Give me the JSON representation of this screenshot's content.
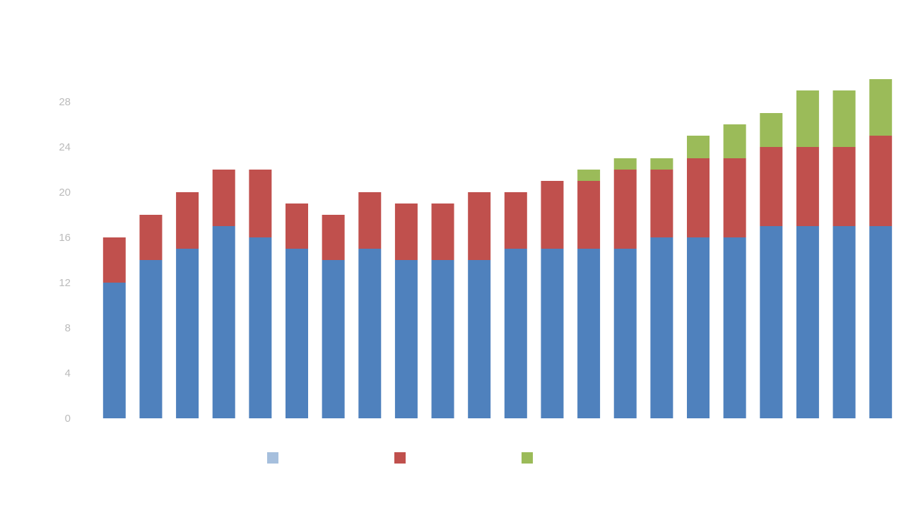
{
  "chart_data": {
    "type": "bar",
    "stacked": true,
    "title": "",
    "subtitle": "",
    "xlabel": "",
    "ylabel": "",
    "x_tick_labels_legible": false,
    "ylim": [
      0,
      30
    ],
    "grid": false,
    "legend_position": "bottom",
    "categories": [
      "",
      "",
      "",
      "",
      "",
      "",
      "",
      "",
      "",
      "",
      "",
      "",
      "",
      "",
      "",
      "",
      "",
      "",
      "",
      "",
      "",
      ""
    ],
    "series": [
      {
        "color": "#4f81bd",
        "values": [
          12,
          14,
          15,
          17,
          16,
          15,
          14,
          15,
          14,
          14,
          14,
          15,
          15,
          15,
          15,
          16,
          16,
          16,
          17,
          17,
          17,
          17
        ]
      },
      {
        "color": "#c0504d",
        "values": [
          4,
          4,
          5,
          5,
          6,
          4,
          4,
          5,
          5,
          5,
          6,
          5,
          6,
          6,
          7,
          6,
          7,
          7,
          7,
          7,
          7,
          8
        ]
      },
      {
        "color": "#9bbb59",
        "values": [
          0,
          0,
          0,
          0,
          0,
          0,
          0,
          0,
          0,
          0,
          0,
          0,
          0,
          1,
          1,
          1,
          2,
          3,
          3,
          5,
          5,
          5
        ]
      }
    ],
    "legend": [
      {
        "label": "",
        "color": "#a6bfdd"
      },
      {
        "label": "",
        "color": "#c0504d"
      },
      {
        "label": "",
        "color": "#9bbb59"
      }
    ]
  }
}
